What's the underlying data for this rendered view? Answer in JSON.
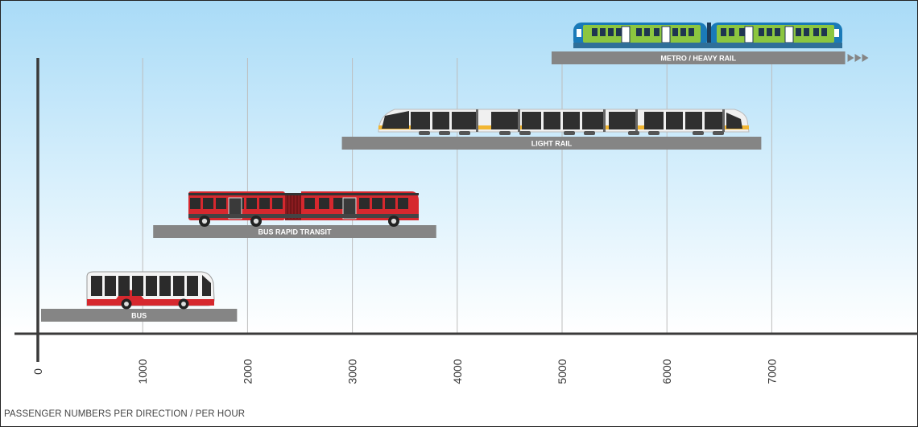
{
  "chart_data": {
    "type": "bar",
    "orientation": "horizontal-range",
    "title": "",
    "xlabel": "PASSENGER NUMBERS PER DIRECTION / PER HOUR",
    "ylabel": "",
    "xlim": [
      0,
      8000
    ],
    "x_ticks": [
      0,
      1000,
      2000,
      3000,
      4000,
      5000,
      6000,
      7000
    ],
    "grid": "vertical",
    "series": [
      {
        "name": "BUS",
        "start": 0,
        "end": 1900,
        "icon": "bus-icon"
      },
      {
        "name": "BUS RAPID TRANSIT",
        "start": 1100,
        "end": 3800,
        "icon": "articulated-bus-icon"
      },
      {
        "name": "LIGHT RAIL",
        "start": 2900,
        "end": 6900,
        "icon": "light-rail-tram-icon"
      },
      {
        "name": "METRO / HEAVY RAIL",
        "start": 4900,
        "end": 7700,
        "extends_beyond": true,
        "icon": "metro-train-icon"
      }
    ]
  },
  "colors": {
    "sky_top": "#a9dbf7",
    "sky_bottom": "#ffffff",
    "bar": "#858585",
    "axis": "#3a3a3a",
    "gridline": "#bdbdbd",
    "bus_red": "#d6282e",
    "metro_green": "#8cc63f",
    "metro_blue": "#1a7ab8",
    "tram_yellow": "#f2b632"
  }
}
